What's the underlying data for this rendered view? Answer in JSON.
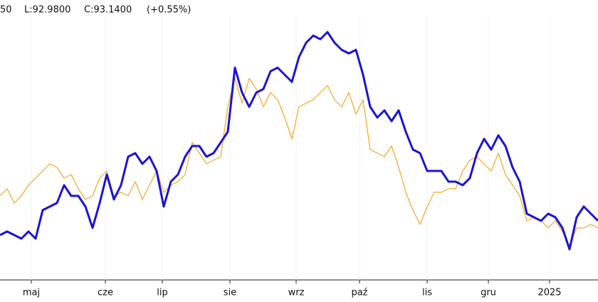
{
  "chart_data": {
    "type": "line",
    "header": [
      "50",
      "L:92.9800",
      "C:93.1400",
      "(+0.55%)"
    ],
    "xlim": [
      0,
      84
    ],
    "xticks": [
      {
        "value": 4.4,
        "label": "maj"
      },
      {
        "value": 14.8,
        "label": "cze"
      },
      {
        "value": 22.8,
        "label": "lip"
      },
      {
        "value": 32.3,
        "label": "sie"
      },
      {
        "value": 41.6,
        "label": "wrz"
      },
      {
        "value": 50.5,
        "label": "paź"
      },
      {
        "value": 60,
        "label": "lis"
      },
      {
        "value": 68.6,
        "label": "gru"
      },
      {
        "value": 77.2,
        "label": "2025"
      }
    ],
    "ylim": [
      0,
      400
    ],
    "grid": true,
    "series": [
      {
        "color": "#f5a623",
        "width": 1.2,
        "values": [
          125,
          135,
          115,
          125,
          140,
          150,
          160,
          170,
          165,
          150,
          155,
          135,
          120,
          125,
          150,
          160,
          125,
          130,
          125,
          145,
          120,
          140,
          160,
          130,
          140,
          145,
          155,
          200,
          185,
          170,
          175,
          180,
          250,
          290,
          255,
          290,
          275,
          250,
          270,
          260,
          235,
          205,
          250,
          255,
          260,
          270,
          280,
          260,
          250,
          270,
          240,
          260,
          190,
          185,
          180,
          195,
          165,
          130,
          105,
          85,
          110,
          130,
          130,
          135,
          135,
          160,
          175,
          180,
          170,
          160,
          185,
          155,
          140,
          125,
          90,
          95,
          90,
          80,
          90,
          75,
          55,
          80,
          80,
          85,
          80
        ]
      },
      {
        "color": "#1a14d6",
        "width": 3,
        "values": [
          70,
          75,
          70,
          65,
          75,
          65,
          105,
          110,
          115,
          140,
          125,
          125,
          110,
          80,
          115,
          155,
          120,
          140,
          180,
          185,
          170,
          180,
          160,
          110,
          145,
          155,
          180,
          195,
          195,
          180,
          185,
          200,
          215,
          305,
          270,
          250,
          270,
          275,
          300,
          305,
          295,
          285,
          320,
          340,
          350,
          345,
          355,
          340,
          330,
          325,
          330,
          295,
          250,
          235,
          245,
          230,
          245,
          215,
          190,
          185,
          160,
          160,
          160,
          145,
          145,
          140,
          150,
          185,
          205,
          190,
          210,
          195,
          165,
          145,
          100,
          95,
          90,
          100,
          95,
          80,
          50,
          95,
          110,
          100,
          90
        ]
      }
    ]
  }
}
